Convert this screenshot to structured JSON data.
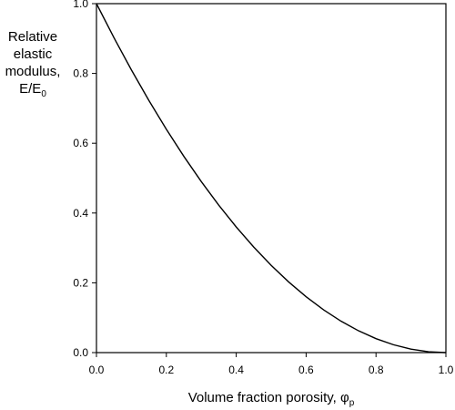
{
  "chart_data": {
    "type": "line",
    "ylabel_lines": [
      "Relative",
      "elastic",
      "modulus,"
    ],
    "ylabel_symbol": "E/E",
    "ylabel_subscript": "0",
    "xlabel_text": "Volume fraction porosity, ",
    "xlabel_symbol": "φ",
    "xlabel_subscript": "p",
    "xlim": [
      0,
      1
    ],
    "ylim": [
      0,
      1
    ],
    "xticks": [
      "0.0",
      "0.2",
      "0.4",
      "0.6",
      "0.8",
      "1.0"
    ],
    "yticks": [
      "0.0",
      "0.2",
      "0.4",
      "0.6",
      "0.8",
      "1.0"
    ],
    "grid": false,
    "series": [
      {
        "color": "#000000",
        "x": [
          0,
          0.05,
          0.1,
          0.15,
          0.2,
          0.25,
          0.3,
          0.35,
          0.4,
          0.45,
          0.5,
          0.55,
          0.6,
          0.65,
          0.7,
          0.75,
          0.8,
          0.85,
          0.9,
          0.95,
          1.0
        ],
        "y": [
          1.0,
          0.9025,
          0.81,
          0.7225,
          0.64,
          0.5625,
          0.49,
          0.4225,
          0.36,
          0.3025,
          0.25,
          0.2025,
          0.16,
          0.1225,
          0.09,
          0.0625,
          0.04,
          0.0225,
          0.01,
          0.0025,
          0.0
        ]
      }
    ]
  }
}
